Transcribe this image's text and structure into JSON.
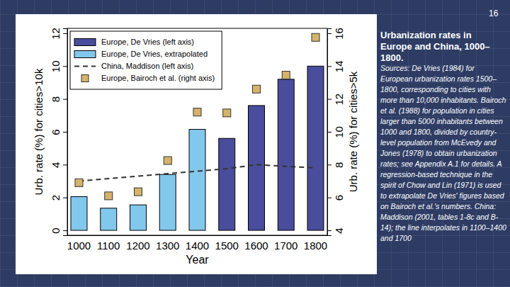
{
  "slide_number": "16",
  "chart_data": {
    "type": "bar",
    "title": "Urbanization rates in Europe and China, 1000–1800.",
    "annotations": [
      "Sources: De Vries (1984) for European urbanization rates 1500–1800, corresponding to cities with more than 10,000 inhabitants. Bairoch et al. (1988) for population in cities larger than 5000 inhabitants between 1000 and 1800, divided by country-level population from McEvedy and Jones (1978) to obtain urbanization rates; see Appendix A.1 for details. A regression-based technique in the spirit of Chow and Lin (1971) is used to extrapolate De Vries' figures based on Bairoch et al.'s numbers. China: Maddison (2001, tables 1-8c and B-14); the line interpolates in 1100–1400 and 1700"
    ],
    "x_label": "Year",
    "y_label": "Urb. rate (%) for cities>10k",
    "y2_label": "Urb. rate (%) for cities>5k",
    "categories": [
      "1000",
      "1100",
      "1200",
      "1300",
      "1400",
      "1500",
      "1600",
      "1700",
      "1800"
    ],
    "series": [
      {
        "name": "Europe, De Vries (left axis)",
        "type": "bar",
        "color": "#4a4d9b",
        "values": [
          null,
          null,
          null,
          null,
          null,
          5.6,
          7.6,
          9.2,
          10.0
        ]
      },
      {
        "name": "Europe, De Vries, extrapolated",
        "type": "bar",
        "color": "#82c8ec",
        "values": [
          2.05,
          1.35,
          1.55,
          3.4,
          6.15,
          null,
          null,
          null,
          null
        ]
      },
      {
        "name": "China, Maddison (left axis)",
        "type": "line",
        "color": "#333333",
        "line_style": "dashed",
        "values": [
          3.0,
          3.15,
          3.3,
          3.45,
          3.6,
          3.75,
          4.0,
          3.9,
          3.8
        ]
      },
      {
        "name": "Europe, Bairoch et al. (right axis)",
        "type": "scatter",
        "color": "#d5b36b",
        "marker": "square",
        "axis": "y2",
        "values": [
          6.9,
          6.1,
          6.35,
          8.25,
          11.2,
          11.15,
          12.6,
          13.45,
          15.75
        ]
      }
    ],
    "ylim": [
      -0.3,
      12.3
    ],
    "yticks": [
      0,
      2,
      4,
      6,
      8,
      10,
      12
    ],
    "y2lim": [
      3.7,
      16.3
    ],
    "y2ticks": [
      4,
      6,
      8,
      10,
      12,
      14,
      16
    ],
    "legend": "upper left",
    "grid": false
  }
}
